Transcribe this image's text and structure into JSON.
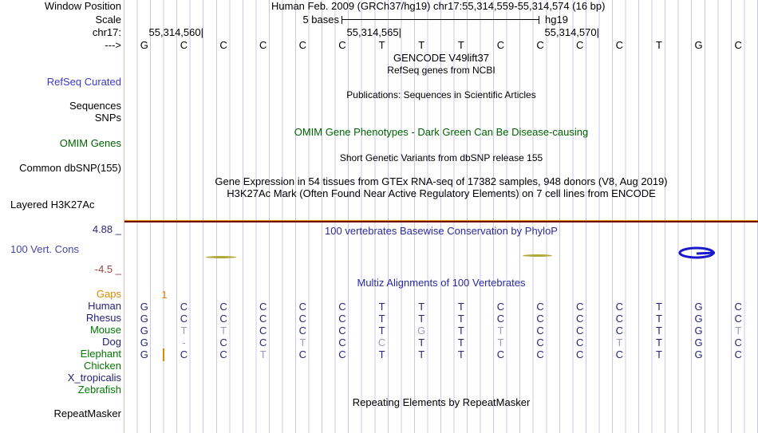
{
  "header": {
    "title": "Human Feb. 2009 (GRCh37/hg19)   chr17:55,314,559-55,314,574 (16 bp)"
  },
  "ruler": {
    "scale_text": "5 bases",
    "assembly": "hg19"
  },
  "positions": {
    "p1": "55,314,560|",
    "p2": "55,314,565|",
    "p3": "55,314,570|"
  },
  "gutter": {
    "window_position": "Window Position",
    "scale": "Scale",
    "chrom": "chr17:",
    "strand": "--->",
    "refseq_curated": "RefSeq Curated",
    "sequences": "Sequences",
    "snps": "SNPs",
    "omim_genes": "OMIM Genes",
    "common_dbsnp": "Common dbSNP(155)",
    "layered_h3k27ac": "Layered H3K27Ac",
    "cons_max": "4.88 _",
    "cons_label": "100 Vert. Cons",
    "cons_min": "-4.5 _",
    "repeatmasker": "RepeatMasker"
  },
  "sequence": [
    "G",
    "C",
    "C",
    "C",
    "C",
    "C",
    "T",
    "T",
    "T",
    "C",
    "C",
    "C",
    "C",
    "T",
    "G",
    "C"
  ],
  "messages": {
    "gencode": "GENCODE V49lift37",
    "refseq_sub": "RefSeq genes from NCBI",
    "publications": "Publications: Sequences in Scientific Articles",
    "omim": "OMIM Gene Phenotypes - Dark Green Can Be Disease-causing",
    "dbsnp": "Short Genetic Variants from dbSNP release 155",
    "gtex": "Gene Expression in 54 tissues from GTEx RNA-seq of 17382 samples, 948 donors (V8, Aug 2019)",
    "h3k27ac": "H3K27Ac Mark (Often Found Near Active Regulatory Elements) on 7 cell lines from ENCODE",
    "phylop": "100 vertebrates Basewise Conservation by PhyloP",
    "multiz": "Multiz Alignments of 100 Vertebrates",
    "repeatmasker_msg": "Repeating Elements by RepeatMasker"
  },
  "alignment": {
    "note": "lowercase = base differs from human (rendered dim), '-' = gap dash, '' = no alignment",
    "gaps": {
      "label": "Gaps",
      "value": "1"
    },
    "rows": [
      {
        "name": "Human",
        "label_color": "navy",
        "cells": [
          "G",
          "C",
          "C",
          "C",
          "C",
          "C",
          "T",
          "T",
          "T",
          "C",
          "C",
          "C",
          "C",
          "T",
          "G",
          "C"
        ]
      },
      {
        "name": "Rhesus",
        "label_color": "navy",
        "cells": [
          "G",
          "C",
          "C",
          "C",
          "C",
          "C",
          "T",
          "T",
          "T",
          "C",
          "C",
          "C",
          "C",
          "T",
          "G",
          "C"
        ]
      },
      {
        "name": "Mouse",
        "label_color": "green",
        "cells": [
          "G",
          "t",
          "t",
          "C",
          "C",
          "C",
          "T",
          "g",
          "T",
          "t",
          "C",
          "C",
          "C",
          "T",
          "G",
          "t"
        ]
      },
      {
        "name": "Dog",
        "label_color": "navy",
        "cells": [
          "G",
          "-",
          "C",
          "C",
          "t",
          "C",
          "c",
          "T",
          "T",
          "t",
          "C",
          "C",
          "t",
          "T",
          "G",
          "C"
        ]
      },
      {
        "name": "Elephant",
        "label_color": "green",
        "cells": [
          "G",
          "C",
          "C",
          "t",
          "C",
          "C",
          "T",
          "T",
          "T",
          "C",
          "C",
          "C",
          "C",
          "T",
          "G",
          "C"
        ]
      },
      {
        "name": "Chicken",
        "label_color": "green",
        "cells": [
          "",
          "",
          "",
          "",
          "",
          "",
          "",
          "",
          "",
          "",
          "",
          "",
          "",
          "",
          "",
          ""
        ]
      },
      {
        "name": "X_tropicalis",
        "label_color": "navy",
        "cells": [
          "",
          "",
          "",
          "",
          "",
          "",
          "",
          "",
          "",
          "",
          "",
          "",
          "",
          "",
          "",
          ""
        ]
      },
      {
        "name": "Zebrafish",
        "label_color": "green",
        "cells": [
          "",
          "",
          "",
          "",
          "",
          "",
          "",
          "",
          "",
          "",
          "",
          "",
          "",
          "",
          "",
          ""
        ]
      }
    ]
  },
  "conservation_glyphs": {
    "dash1": "phylop-wiggle-segment",
    "dash2": "phylop-wiggle-segment",
    "ellipse": "phylop-wiggle-loop"
  },
  "colors": {
    "grid": "#c8c8e8",
    "pink_border": "#f0b4b4",
    "divider_maroon": "#6d0b0b",
    "divider_orange": "#e89410",
    "base_match": "#26267e",
    "base_diff": "#9a9ac0",
    "species_navy": "#22227c",
    "species_green": "#007800",
    "gaps_orange": "#e08a00",
    "track_blue": "#2a2a9e",
    "link_blue": "#3a3ac8",
    "omim_green": "#006400",
    "cons_max_navy": "#28287c",
    "cons_min_red": "#9a4242",
    "wiggle_olive": "#b0a93a",
    "wiggle_blue": "#1a1acc"
  }
}
